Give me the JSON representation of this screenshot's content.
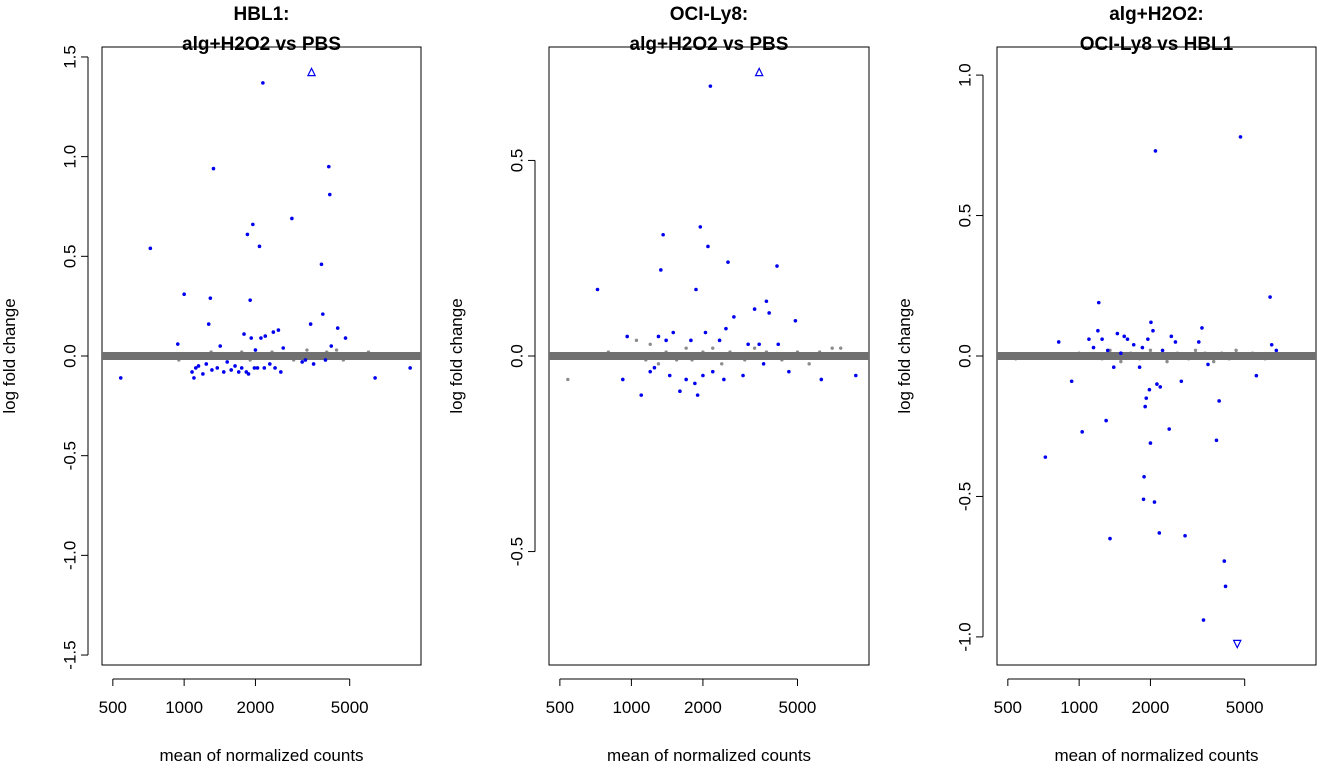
{
  "chart_data": [
    {
      "type": "scatter",
      "title": "HBL1:",
      "subtitle": "alg+H2O2 vs PBS",
      "xlabel": "mean of normalized counts",
      "ylabel": "log fold change",
      "xscale": "log",
      "xlim": [
        450,
        10000
      ],
      "ylim": [
        -1.55,
        1.55
      ],
      "xticks": [
        500,
        1000,
        2000,
        5000
      ],
      "xtick_labels": [
        "500",
        "1000",
        "2000",
        "5000"
      ],
      "yticks": [
        1.5,
        1.0,
        0.5,
        0.0,
        -0.5,
        -1.0,
        -1.5
      ],
      "ytick_labels": [
        "1.5",
        "1.0",
        "0.5",
        "0.0",
        "-0.5",
        "-1.0",
        "-1.5"
      ],
      "significant_points": [
        [
          540,
          -0.11
        ],
        [
          720,
          0.54
        ],
        [
          940,
          0.06
        ],
        [
          1000,
          0.31
        ],
        [
          1080,
          -0.08
        ],
        [
          1100,
          -0.11
        ],
        [
          1120,
          -0.06
        ],
        [
          1150,
          -0.05
        ],
        [
          1200,
          -0.09
        ],
        [
          1240,
          -0.04
        ],
        [
          1270,
          0.16
        ],
        [
          1290,
          0.29
        ],
        [
          1310,
          -0.07
        ],
        [
          1330,
          0.94
        ],
        [
          1380,
          -0.06
        ],
        [
          1420,
          0.05
        ],
        [
          1470,
          -0.08
        ],
        [
          1520,
          -0.03
        ],
        [
          1580,
          -0.07
        ],
        [
          1640,
          -0.05
        ],
        [
          1700,
          -0.08
        ],
        [
          1750,
          -0.06
        ],
        [
          1790,
          0.11
        ],
        [
          1830,
          -0.08
        ],
        [
          1850,
          0.61
        ],
        [
          1870,
          -0.09
        ],
        [
          1900,
          0.28
        ],
        [
          1920,
          0.09
        ],
        [
          1950,
          0.66
        ],
        [
          1980,
          -0.06
        ],
        [
          2000,
          0.03
        ],
        [
          2040,
          -0.06
        ],
        [
          2080,
          0.55
        ],
        [
          2110,
          0.09
        ],
        [
          2150,
          1.37
        ],
        [
          2180,
          -0.06
        ],
        [
          2200,
          0.1
        ],
        [
          2300,
          -0.04
        ],
        [
          2380,
          0.12
        ],
        [
          2420,
          -0.06
        ],
        [
          2500,
          0.13
        ],
        [
          2560,
          -0.08
        ],
        [
          2620,
          0.04
        ],
        [
          2850,
          0.69
        ],
        [
          3150,
          -0.03
        ],
        [
          3250,
          -0.02
        ],
        [
          3420,
          0.16
        ],
        [
          3520,
          -0.04
        ],
        [
          3800,
          0.46
        ],
        [
          3850,
          0.21
        ],
        [
          3950,
          -0.02
        ],
        [
          4080,
          0.95
        ],
        [
          4120,
          0.81
        ],
        [
          4180,
          0.05
        ],
        [
          4450,
          0.14
        ],
        [
          4800,
          0.09
        ],
        [
          6400,
          -0.11
        ],
        [
          9000,
          -0.06
        ]
      ],
      "nonsignificant_points": [
        [
          950,
          -0.02
        ],
        [
          1000,
          0.01
        ],
        [
          1250,
          0.01
        ],
        [
          1300,
          0.02
        ],
        [
          1500,
          -0.01
        ],
        [
          1600,
          0.0
        ],
        [
          1750,
          0.02
        ],
        [
          1900,
          -0.02
        ],
        [
          2050,
          0.01
        ],
        [
          2200,
          -0.01
        ],
        [
          2350,
          0.02
        ],
        [
          2500,
          0.0
        ],
        [
          2700,
          0.01
        ],
        [
          2900,
          -0.02
        ],
        [
          3100,
          0.01
        ],
        [
          3300,
          0.03
        ],
        [
          3600,
          -0.01
        ],
        [
          4000,
          0.02
        ],
        [
          4400,
          0.03
        ],
        [
          4700,
          -0.02
        ],
        [
          5200,
          0.01
        ],
        [
          5600,
          -0.01
        ],
        [
          6000,
          0.02
        ],
        [
          6500,
          0.01
        ],
        [
          7200,
          0.0
        ],
        [
          8000,
          0.01
        ]
      ],
      "out_of_range_points": [
        [
          3450,
          1.48
        ]
      ]
    },
    {
      "type": "scatter",
      "title": "OCI-Ly8:",
      "subtitle": "alg+H2O2 vs PBS",
      "xlabel": "mean of normalized counts",
      "ylabel": "log fold change",
      "xscale": "log",
      "xlim": [
        450,
        10000
      ],
      "ylim": [
        -0.79,
        0.79
      ],
      "xticks": [
        500,
        1000,
        2000,
        5000
      ],
      "xtick_labels": [
        "500",
        "1000",
        "2000",
        "5000"
      ],
      "yticks": [
        0.5,
        0.0,
        -0.5
      ],
      "ytick_labels": [
        "0.5",
        "0.0",
        "-0.5"
      ],
      "significant_points": [
        [
          720,
          0.17
        ],
        [
          920,
          -0.06
        ],
        [
          960,
          0.05
        ],
        [
          1100,
          -0.1
        ],
        [
          1200,
          -0.04
        ],
        [
          1250,
          -0.03
        ],
        [
          1300,
          0.05
        ],
        [
          1330,
          0.22
        ],
        [
          1360,
          0.31
        ],
        [
          1400,
          0.04
        ],
        [
          1450,
          -0.05
        ],
        [
          1500,
          0.06
        ],
        [
          1600,
          -0.09
        ],
        [
          1700,
          -0.06
        ],
        [
          1780,
          0.04
        ],
        [
          1850,
          -0.07
        ],
        [
          1870,
          0.17
        ],
        [
          1900,
          -0.1
        ],
        [
          1950,
          0.33
        ],
        [
          2000,
          -0.05
        ],
        [
          2050,
          0.06
        ],
        [
          2100,
          0.28
        ],
        [
          2150,
          0.69
        ],
        [
          2200,
          -0.04
        ],
        [
          2350,
          0.04
        ],
        [
          2450,
          -0.06
        ],
        [
          2500,
          0.07
        ],
        [
          2550,
          0.24
        ],
        [
          2700,
          0.1
        ],
        [
          2950,
          -0.05
        ],
        [
          3100,
          0.03
        ],
        [
          3300,
          0.12
        ],
        [
          3450,
          0.03
        ],
        [
          3600,
          -0.02
        ],
        [
          3700,
          0.14
        ],
        [
          3800,
          0.11
        ],
        [
          4100,
          0.23
        ],
        [
          4150,
          0.03
        ],
        [
          4600,
          -0.04
        ],
        [
          4900,
          0.09
        ],
        [
          6300,
          -0.06
        ],
        [
          8800,
          -0.05
        ]
      ],
      "nonsignificant_points": [
        [
          540,
          -0.06
        ],
        [
          800,
          0.01
        ],
        [
          1050,
          0.04
        ],
        [
          1150,
          -0.01
        ],
        [
          1200,
          0.03
        ],
        [
          1300,
          -0.02
        ],
        [
          1400,
          0.01
        ],
        [
          1550,
          -0.01
        ],
        [
          1700,
          0.02
        ],
        [
          1800,
          -0.01
        ],
        [
          2000,
          0.01
        ],
        [
          2200,
          0.02
        ],
        [
          2400,
          -0.02
        ],
        [
          2600,
          0.01
        ],
        [
          2800,
          0.0
        ],
        [
          3000,
          -0.01
        ],
        [
          3300,
          0.02
        ],
        [
          3700,
          0.01
        ],
        [
          4300,
          -0.01
        ],
        [
          5000,
          0.01
        ],
        [
          5600,
          -0.02
        ],
        [
          6200,
          0.01
        ],
        [
          7000,
          0.02
        ],
        [
          7600,
          0.02
        ]
      ],
      "out_of_range_points": [
        [
          3450,
          0.73
        ]
      ]
    },
    {
      "type": "scatter",
      "title": "alg+H2O2:",
      "subtitle": "OCI-Ly8 vs HBL1",
      "xlabel": "mean of normalized counts",
      "ylabel": "log fold change",
      "xscale": "log",
      "xlim": [
        450,
        10000
      ],
      "ylim": [
        -1.1,
        1.1
      ],
      "xticks": [
        500,
        1000,
        2000,
        5000
      ],
      "xtick_labels": [
        "500",
        "1000",
        "2000",
        "5000"
      ],
      "yticks": [
        1.0,
        0.5,
        0.0,
        -0.5,
        -1.0
      ],
      "ytick_labels": [
        "1.0",
        "0.5",
        "0.0",
        "-0.5",
        "-1.0"
      ],
      "significant_points": [
        [
          720,
          -0.36
        ],
        [
          820,
          0.05
        ],
        [
          930,
          -0.09
        ],
        [
          1030,
          -0.27
        ],
        [
          1100,
          0.06
        ],
        [
          1150,
          0.03
        ],
        [
          1200,
          0.09
        ],
        [
          1210,
          0.19
        ],
        [
          1250,
          0.06
        ],
        [
          1300,
          -0.23
        ],
        [
          1320,
          0.02
        ],
        [
          1350,
          -0.65
        ],
        [
          1400,
          -0.04
        ],
        [
          1450,
          0.08
        ],
        [
          1500,
          0.01
        ],
        [
          1550,
          0.07
        ],
        [
          1600,
          0.06
        ],
        [
          1700,
          0.04
        ],
        [
          1800,
          -0.04
        ],
        [
          1850,
          0.03
        ],
        [
          1870,
          -0.51
        ],
        [
          1880,
          -0.43
        ],
        [
          1900,
          -0.18
        ],
        [
          1920,
          -0.15
        ],
        [
          1950,
          0.06
        ],
        [
          1980,
          -0.12
        ],
        [
          2000,
          -0.31
        ],
        [
          2010,
          0.12
        ],
        [
          2050,
          0.09
        ],
        [
          2080,
          -0.52
        ],
        [
          2100,
          0.73
        ],
        [
          2130,
          -0.1
        ],
        [
          2180,
          -0.63
        ],
        [
          2200,
          -0.11
        ],
        [
          2250,
          0.02
        ],
        [
          2400,
          -0.26
        ],
        [
          2450,
          0.07
        ],
        [
          2550,
          0.05
        ],
        [
          2700,
          -0.09
        ],
        [
          2800,
          -0.64
        ],
        [
          3200,
          0.05
        ],
        [
          3300,
          0.1
        ],
        [
          3350,
          -0.94
        ],
        [
          3500,
          -0.03
        ],
        [
          3800,
          -0.3
        ],
        [
          3900,
          -0.16
        ],
        [
          4100,
          -0.73
        ],
        [
          4150,
          -0.82
        ],
        [
          4800,
          0.78
        ],
        [
          5600,
          -0.07
        ],
        [
          6400,
          0.21
        ],
        [
          6500,
          0.04
        ],
        [
          6800,
          0.02
        ]
      ],
      "nonsignificant_points": [
        [
          540,
          -0.01
        ],
        [
          1000,
          0.01
        ],
        [
          1250,
          -0.01
        ],
        [
          1350,
          0.02
        ],
        [
          1500,
          -0.02
        ],
        [
          1650,
          0.01
        ],
        [
          1800,
          -0.01
        ],
        [
          2000,
          0.02
        ],
        [
          2200,
          0.0
        ],
        [
          2350,
          -0.02
        ],
        [
          2600,
          0.01
        ],
        [
          2900,
          -0.01
        ],
        [
          3100,
          0.02
        ],
        [
          3400,
          0.01
        ],
        [
          3700,
          -0.02
        ],
        [
          4000,
          0.01
        ],
        [
          4300,
          -0.01
        ],
        [
          4600,
          0.02
        ],
        [
          5000,
          0.0
        ],
        [
          5400,
          0.01
        ],
        [
          6100,
          -0.01
        ]
      ],
      "out_of_range_points": [
        [
          4650,
          -1.03
        ]
      ]
    }
  ]
}
